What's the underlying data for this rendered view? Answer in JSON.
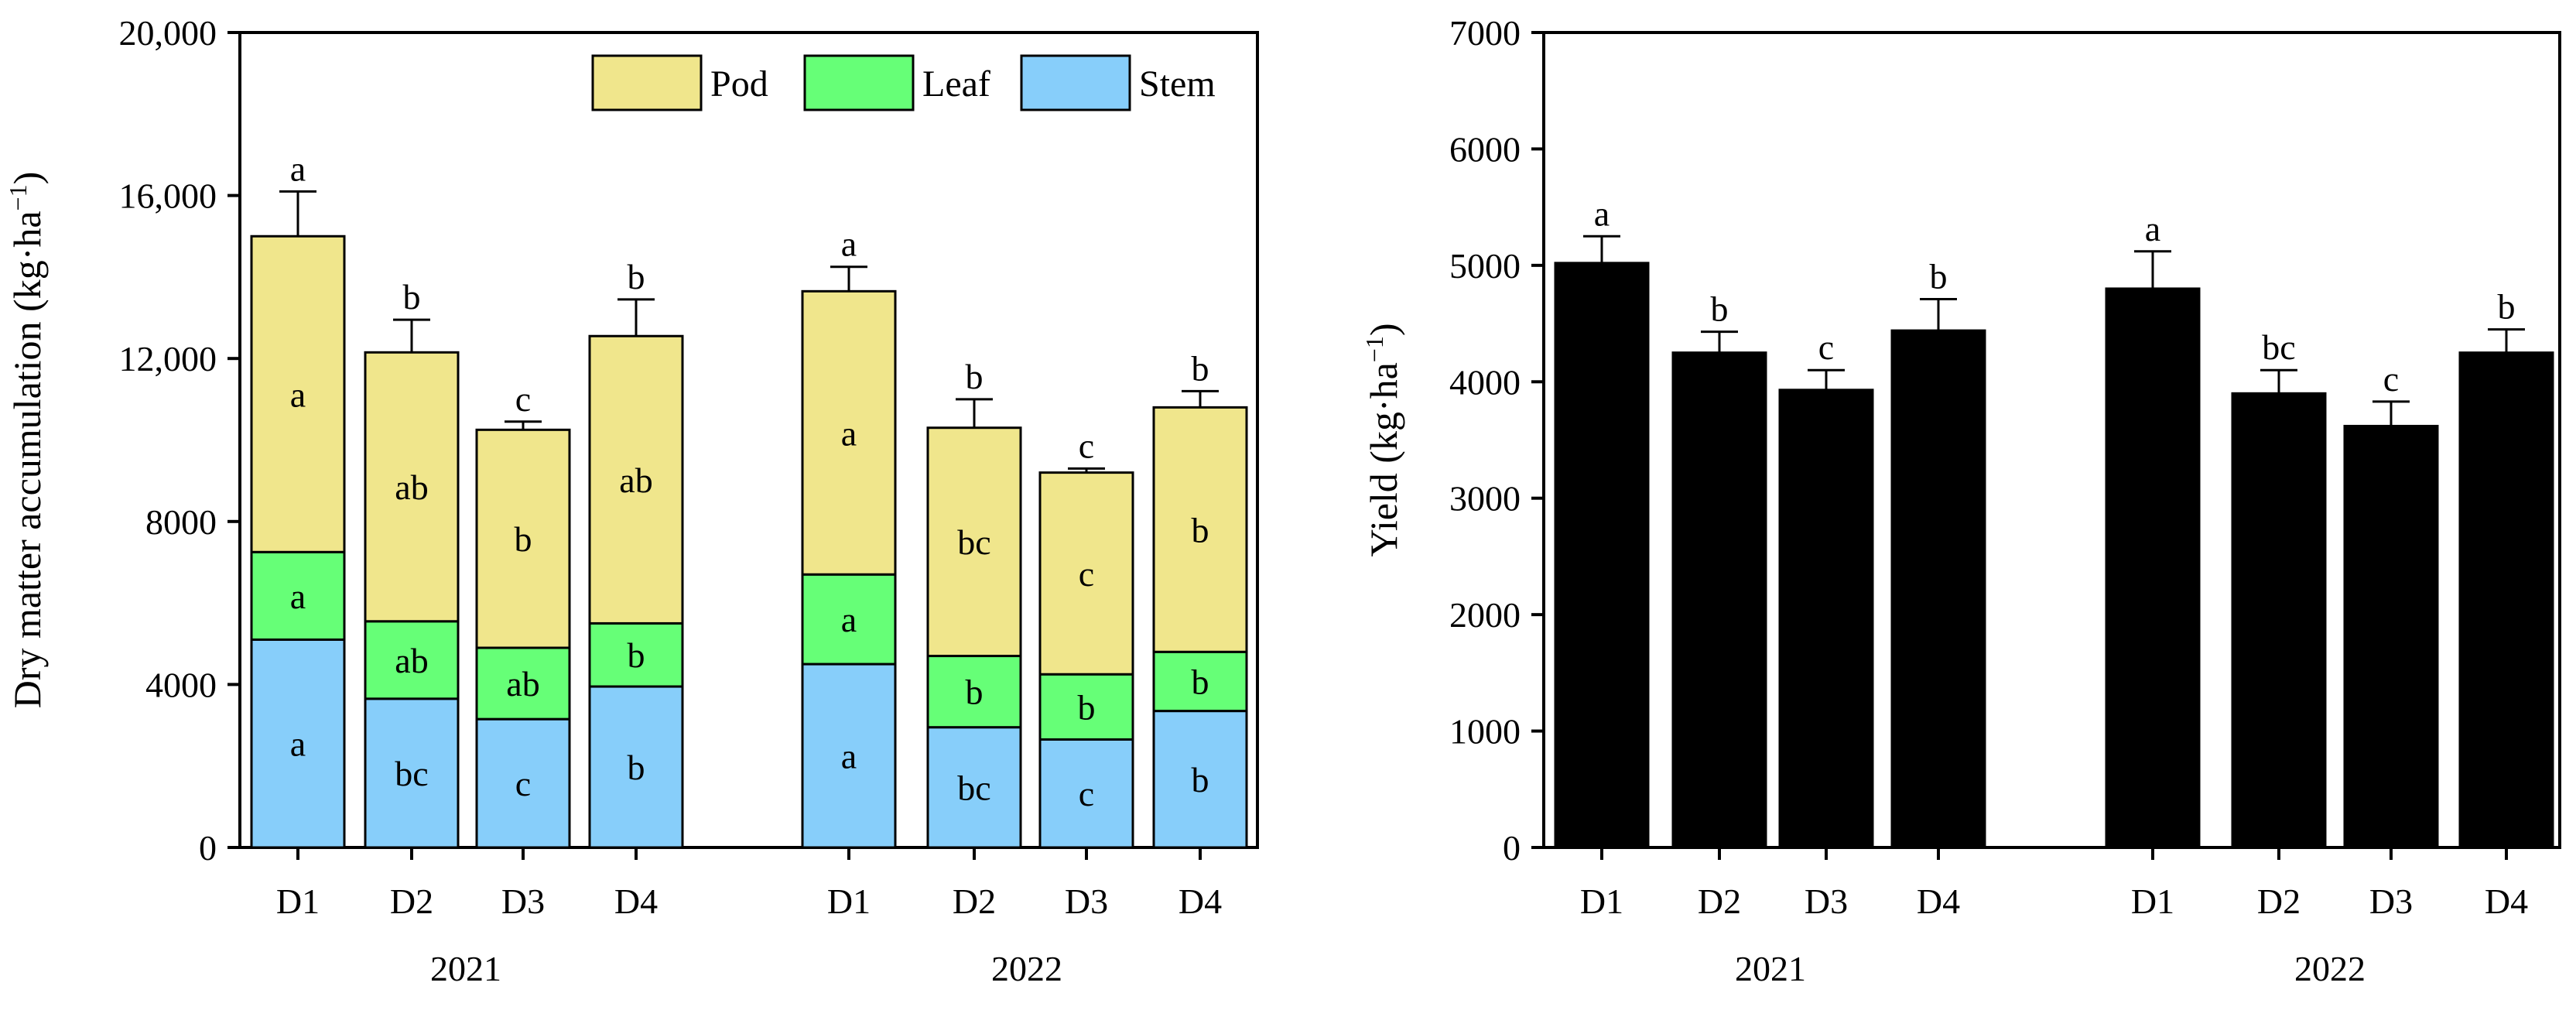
{
  "chart_data": [
    {
      "type": "bar",
      "stacked": true,
      "ylabel": "Dry matter accumulation (kg·ha",
      "ylabel_sup": "−1",
      "ylabel_close": ")",
      "ylim": [
        0,
        20000
      ],
      "yticks": [
        0,
        4000,
        8000,
        12000,
        16000,
        20000
      ],
      "ytick_labels": [
        "0",
        "4000",
        "8000",
        "12,000",
        "16,000",
        "20,000"
      ],
      "groups": [
        "2021",
        "2022"
      ],
      "categories": [
        "D1",
        "D2",
        "D3",
        "D4"
      ],
      "legend": [
        "Pod",
        "Leaf",
        "Stem"
      ],
      "legend_position": "top-right",
      "colors": {
        "Stem": "#87cefa",
        "Leaf": "#66ff77",
        "Pod": "#f0e68c"
      },
      "series": [
        {
          "name": "Stem",
          "values": [
            [
              5100,
              3650,
              3150,
              3950
            ],
            [
              4500,
              2950,
              2650,
              3350
            ]
          ],
          "labels": [
            [
              "a",
              "bc",
              "c",
              "b"
            ],
            [
              "a",
              "bc",
              "c",
              "b"
            ]
          ]
        },
        {
          "name": "Leaf",
          "values": [
            [
              2150,
              1900,
              1750,
              1550
            ],
            [
              2200,
              1750,
              1600,
              1450
            ]
          ],
          "labels": [
            [
              "a",
              "ab",
              "ab",
              "b"
            ],
            [
              "a",
              "b",
              "b",
              "b"
            ]
          ]
        },
        {
          "name": "Pod",
          "values": [
            [
              7750,
              6600,
              5350,
              7050
            ],
            [
              6950,
              5600,
              4950,
              6000
            ]
          ],
          "labels": [
            [
              "a",
              "ab",
              "b",
              "ab"
            ],
            [
              "a",
              "bc",
              "c",
              "b"
            ]
          ]
        }
      ],
      "errors": [
        [
          1100,
          800,
          200,
          900
        ],
        [
          600,
          700,
          100,
          400
        ]
      ],
      "total_labels": [
        [
          "a",
          "b",
          "c",
          "b"
        ],
        [
          "a",
          "b",
          "c",
          "b"
        ]
      ]
    },
    {
      "type": "bar",
      "ylabel": "Yield (kg·ha",
      "ylabel_sup": "−1",
      "ylabel_close": ")",
      "ylim": [
        0,
        7000
      ],
      "yticks": [
        0,
        1000,
        2000,
        3000,
        4000,
        5000,
        6000,
        7000
      ],
      "ytick_labels": [
        "0",
        "1000",
        "2000",
        "3000",
        "4000",
        "5000",
        "6000",
        "7000"
      ],
      "groups": [
        "2021",
        "2022"
      ],
      "categories": [
        "D1",
        "D2",
        "D3",
        "D4"
      ],
      "color": "#000000",
      "values": [
        [
          5020,
          4250,
          3930,
          4440
        ],
        [
          4800,
          3900,
          3620,
          4250
        ]
      ],
      "errors": [
        [
          230,
          180,
          170,
          270
        ],
        [
          320,
          200,
          210,
          200
        ]
      ],
      "labels": [
        [
          "a",
          "b",
          "c",
          "b"
        ],
        [
          "a",
          "bc",
          "c",
          "b"
        ]
      ]
    }
  ]
}
